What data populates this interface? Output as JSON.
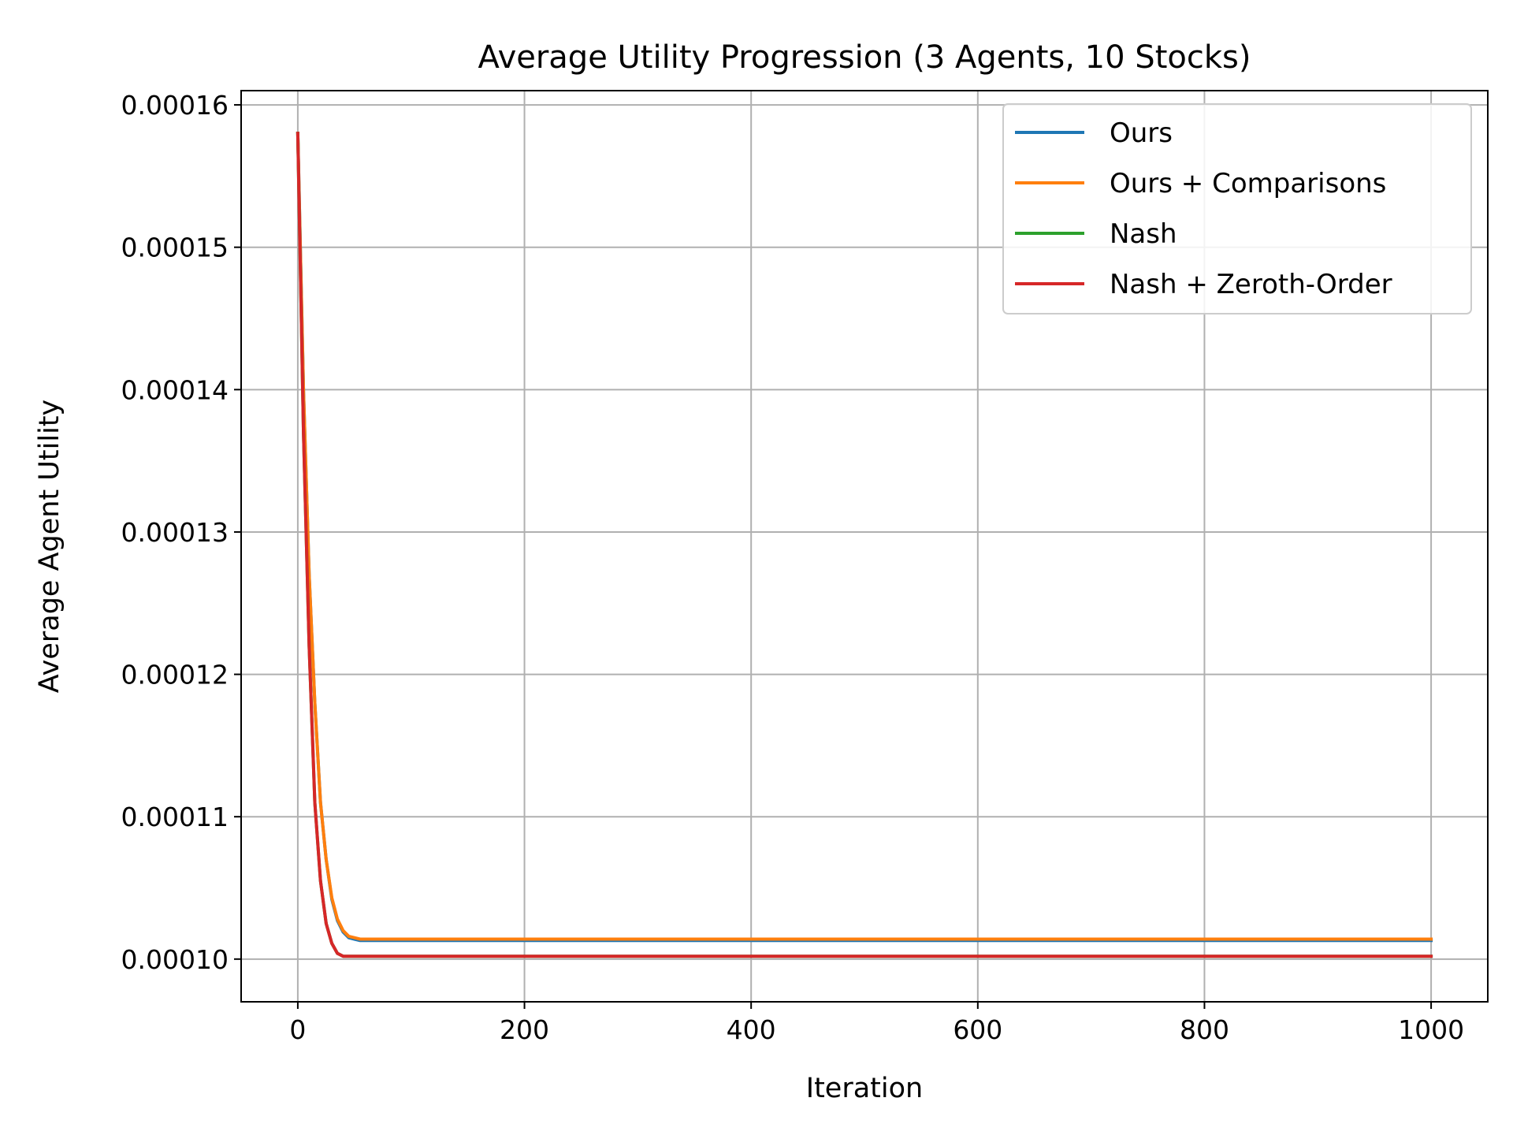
{
  "chart_data": {
    "type": "line",
    "title": "Average Utility Progression (3 Agents, 10 Stocks)",
    "xlabel": "Iteration",
    "ylabel": "Average Agent Utility",
    "xlim": [
      -50,
      1050
    ],
    "ylim": [
      9.7e-05,
      0.000161
    ],
    "xticks": [
      0,
      200,
      400,
      600,
      800,
      1000
    ],
    "xtick_labels": [
      "0",
      "200",
      "400",
      "600",
      "800",
      "1000"
    ],
    "yticks": [
      0.0001,
      0.00011,
      0.00012,
      0.00013,
      0.00014,
      0.00015,
      0.00016
    ],
    "ytick_labels": [
      "0.00010",
      "0.00011",
      "0.00012",
      "0.00013",
      "0.00014",
      "0.00015",
      "0.00016"
    ],
    "grid": true,
    "legend_position": "top-right",
    "series": [
      {
        "name": "Ours",
        "color": "#1f77b4",
        "x": [
          0,
          5,
          10,
          15,
          20,
          25,
          30,
          35,
          40,
          45,
          50,
          55,
          60,
          80,
          100,
          200,
          400,
          600,
          800,
          1000
        ],
        "y": [
          0.000158,
          0.00014,
          0.000127,
          0.000118,
          0.000111,
          0.000107,
          0.0001042,
          0.0001027,
          0.0001019,
          0.0001015,
          0.0001014,
          0.0001013,
          0.0001013,
          0.0001013,
          0.0001013,
          0.0001013,
          0.0001013,
          0.0001013,
          0.0001013,
          0.0001013
        ]
      },
      {
        "name": "Ours + Comparisons",
        "color": "#ff7f0e",
        "x": [
          0,
          5,
          10,
          15,
          20,
          25,
          30,
          35,
          40,
          45,
          50,
          55,
          60,
          80,
          100,
          200,
          400,
          600,
          800,
          1000
        ],
        "y": [
          0.000158,
          0.00014,
          0.000127,
          0.000118,
          0.000111,
          0.000107,
          0.0001043,
          0.0001028,
          0.000102,
          0.0001016,
          0.0001015,
          0.0001014,
          0.0001014,
          0.0001014,
          0.0001014,
          0.0001014,
          0.0001014,
          0.0001014,
          0.0001014,
          0.0001014
        ]
      },
      {
        "name": "Nash",
        "color": "#2ca02c",
        "x": [
          0,
          5,
          10,
          15,
          20,
          25,
          30,
          35,
          40,
          45,
          50,
          80,
          100,
          200,
          400,
          600,
          800,
          1000
        ],
        "y": [
          0.000158,
          0.000137,
          0.000122,
          0.000111,
          0.0001055,
          0.0001025,
          0.0001011,
          0.0001004,
          0.0001002,
          0.0001002,
          0.0001002,
          0.0001002,
          0.0001002,
          0.0001002,
          0.0001002,
          0.0001002,
          0.0001002,
          0.0001002
        ]
      },
      {
        "name": "Nash + Zeroth-Order",
        "color": "#d62728",
        "x": [
          0,
          5,
          10,
          15,
          20,
          25,
          30,
          35,
          40,
          45,
          50,
          80,
          100,
          200,
          400,
          600,
          800,
          1000
        ],
        "y": [
          0.000158,
          0.000137,
          0.000122,
          0.000111,
          0.0001055,
          0.0001025,
          0.0001011,
          0.0001004,
          0.0001002,
          0.0001002,
          0.0001002,
          0.0001002,
          0.0001002,
          0.0001002,
          0.0001002,
          0.0001002,
          0.0001002,
          0.0001002
        ]
      }
    ]
  }
}
